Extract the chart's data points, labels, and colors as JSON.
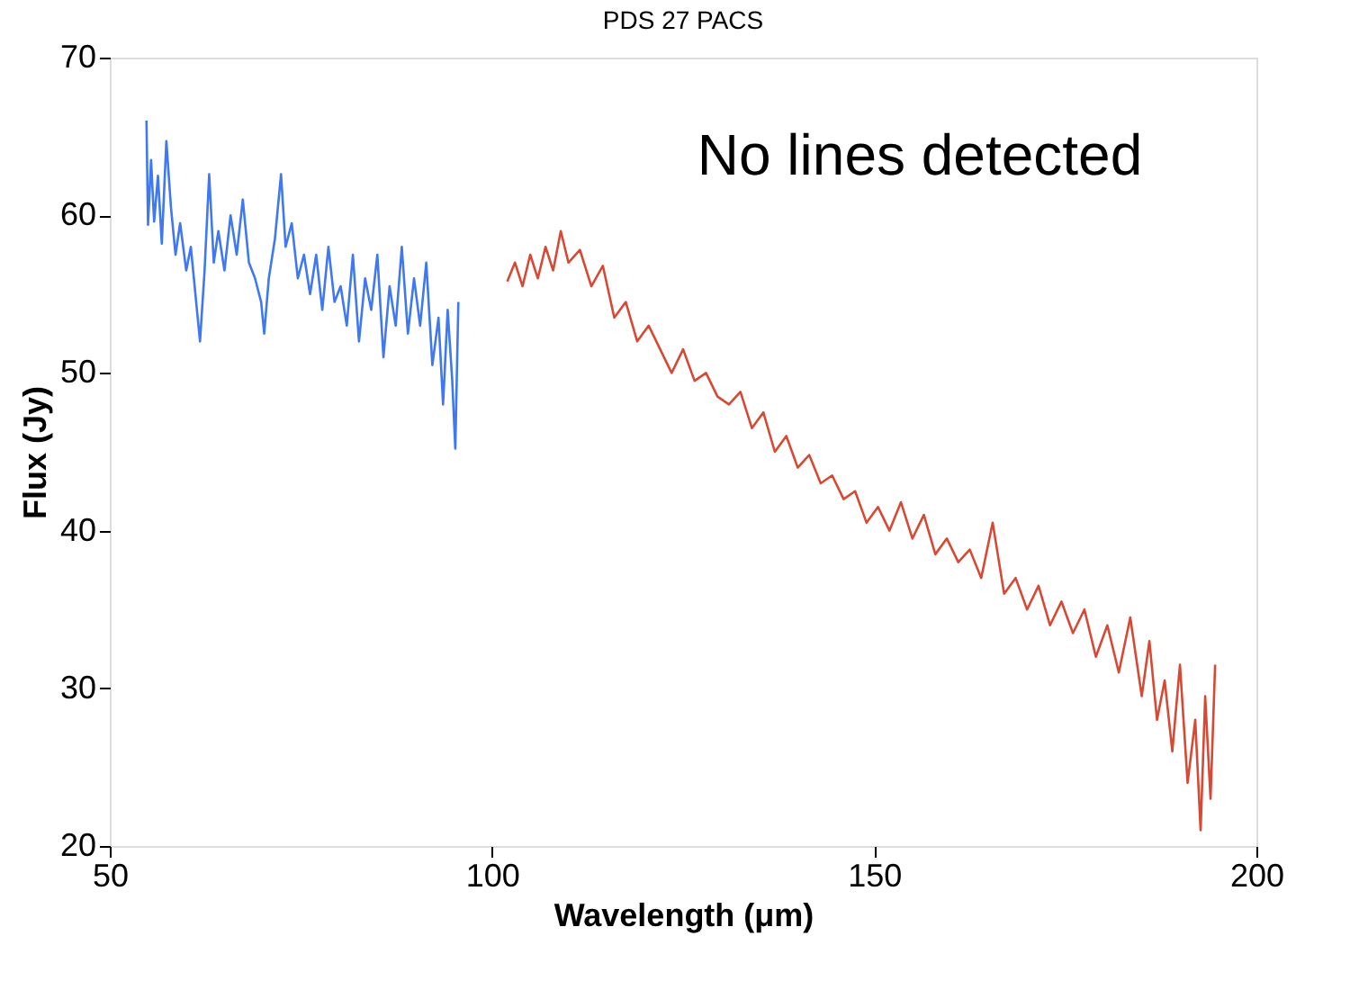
{
  "chart_data": {
    "type": "line",
    "title": "PDS 27 PACS",
    "xlabel": "Wavelength (μm)",
    "ylabel": "Flux (Jy)",
    "xlim": [
      50,
      200
    ],
    "xticks": [
      50,
      100,
      150,
      200
    ],
    "ylim": [
      20,
      70
    ],
    "yticks": [
      20,
      30,
      40,
      50,
      60,
      70
    ],
    "grid": false,
    "marker": "none",
    "line_style": "solid",
    "annotations": [
      "No lines detected"
    ],
    "series": [
      {
        "color": "#3f78f0",
        "x": [
          54.8,
          55.0,
          55.4,
          55.8,
          56.3,
          56.8,
          57.4,
          58.0,
          58.6,
          59.2,
          60.0,
          60.6,
          61.2,
          61.8,
          62.4,
          63.0,
          63.6,
          64.2,
          65.0,
          65.8,
          66.6,
          67.4,
          68.2,
          69.0,
          69.8,
          70.2,
          70.8,
          71.6,
          72.4,
          73.0,
          73.8,
          74.6,
          75.4,
          76.2,
          77.0,
          77.8,
          78.6,
          79.4,
          80.2,
          81.0,
          81.8,
          82.6,
          83.4,
          84.2,
          85.0,
          85.8,
          86.6,
          87.4,
          88.2,
          89.0,
          89.8,
          90.6,
          91.4,
          92.2,
          93.0,
          93.6,
          94.2,
          94.8,
          95.2,
          95.6
        ],
        "values": [
          66.0,
          59.4,
          63.5,
          59.6,
          62.5,
          58.2,
          64.7,
          60.5,
          57.5,
          59.5,
          56.5,
          58.0,
          55.0,
          52.0,
          56.5,
          62.6,
          57.0,
          59.0,
          56.5,
          60.0,
          57.5,
          61.0,
          57.0,
          56.0,
          54.5,
          52.5,
          56.0,
          58.5,
          62.6,
          58.0,
          59.5,
          56.0,
          57.5,
          55.0,
          57.5,
          54.0,
          58.0,
          54.5,
          55.5,
          53.0,
          57.5,
          52.0,
          56.0,
          54.0,
          57.5,
          51.0,
          55.5,
          53.0,
          58.0,
          52.5,
          56.0,
          53.0,
          57.0,
          50.5,
          53.5,
          48.0,
          54.0,
          49.5,
          45.2,
          54.5
        ]
      },
      {
        "color": "#d64a35",
        "x": [
          102.0,
          103.0,
          104.0,
          105.0,
          106.0,
          107.0,
          108.0,
          109.0,
          110.0,
          111.5,
          113.0,
          114.5,
          116.0,
          117.5,
          119.0,
          120.5,
          122.0,
          123.5,
          125.0,
          126.5,
          128.0,
          129.5,
          131.0,
          132.5,
          134.0,
          135.5,
          137.0,
          138.5,
          140.0,
          141.5,
          143.0,
          144.5,
          146.0,
          147.5,
          149.0,
          150.5,
          152.0,
          153.5,
          155.0,
          156.5,
          158.0,
          159.5,
          161.0,
          162.5,
          164.0,
          165.5,
          167.0,
          168.5,
          170.0,
          171.5,
          173.0,
          174.5,
          176.0,
          177.5,
          179.0,
          180.5,
          182.0,
          183.5,
          185.0,
          186.0,
          187.0,
          188.0,
          189.0,
          190.0,
          191.0,
          192.0,
          192.7,
          193.3,
          194.0,
          194.6
        ],
        "values": [
          55.8,
          57.0,
          55.5,
          57.5,
          56.0,
          58.0,
          56.5,
          59.0,
          57.0,
          57.8,
          55.5,
          56.8,
          53.5,
          54.5,
          52.0,
          53.0,
          51.5,
          50.0,
          51.5,
          49.5,
          50.0,
          48.5,
          48.0,
          48.8,
          46.5,
          47.5,
          45.0,
          46.0,
          44.0,
          44.8,
          43.0,
          43.5,
          42.0,
          42.5,
          40.5,
          41.5,
          40.0,
          41.8,
          39.5,
          41.0,
          38.5,
          39.5,
          38.0,
          38.8,
          37.0,
          40.5,
          36.0,
          37.0,
          35.0,
          36.5,
          34.0,
          35.5,
          33.5,
          35.0,
          32.0,
          34.0,
          31.0,
          34.5,
          29.5,
          33.0,
          28.0,
          30.5,
          26.0,
          31.5,
          24.0,
          28.0,
          21.0,
          29.5,
          23.0,
          31.5
        ]
      }
    ]
  }
}
